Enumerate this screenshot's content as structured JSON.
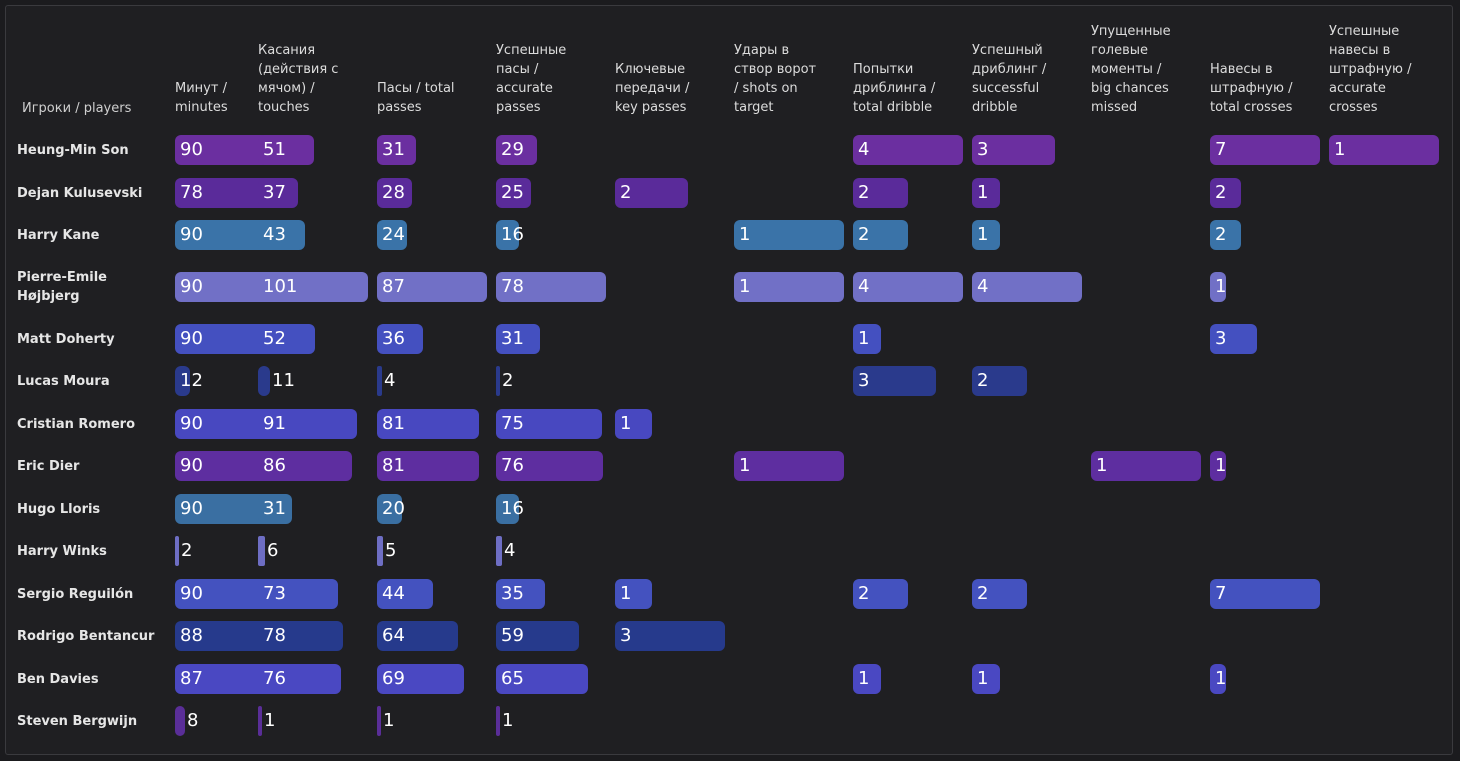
{
  "chart_data": {
    "type": "table",
    "title": "",
    "row_header": "Игроки / players",
    "columns": [
      "Минут /\nminutes",
      "Касания\n(действия с\nмячом) /\ntouches",
      "Пасы / total\npasses",
      "Успешные\nпасы /\naccurate\npasses",
      "Ключевые\nпередачи /\nkey passes",
      "Удары в\nствор ворот\n/ shots on\ntarget",
      "Попытки\nдриблинга /\ntotal dribble",
      "Успешный\nдриблинг /\nsuccessful\ndribble",
      "Упущенные\nголевые\nмоменты /\nbig chances\nmissed",
      "Навесы в\nштрафную /\ntotal crosses",
      "Успешные\nнавесы в\nштрафную /\naccurate\ncrosses"
    ],
    "column_max": [
      90,
      101,
      87,
      78,
      3,
      1,
      4,
      4,
      1,
      7,
      1
    ],
    "rows": [
      {
        "player": "Heung-Min Son",
        "color": "#6b2fa0",
        "values": [
          90,
          51,
          31,
          29,
          null,
          null,
          4,
          3,
          null,
          7,
          1
        ]
      },
      {
        "player": "Dejan Kulusevski",
        "color": "#5a2b9a",
        "values": [
          78,
          37,
          28,
          25,
          2,
          null,
          2,
          1,
          null,
          2,
          null
        ]
      },
      {
        "player": "Harry Kane",
        "color": "#3a73a8",
        "values": [
          90,
          43,
          24,
          16,
          null,
          1,
          2,
          1,
          null,
          2,
          null
        ]
      },
      {
        "player": "Pierre-Emile\nHøjbjerg",
        "color": "#7170c6",
        "values": [
          90,
          101,
          87,
          78,
          null,
          1,
          4,
          4,
          null,
          1,
          null
        ]
      },
      {
        "player": "Matt Doherty",
        "color": "#4450c0",
        "values": [
          90,
          52,
          36,
          31,
          null,
          null,
          1,
          null,
          null,
          3,
          null
        ]
      },
      {
        "player": "Lucas Moura",
        "color": "#2a3a8c",
        "values": [
          12,
          11,
          4,
          2,
          null,
          null,
          3,
          2,
          null,
          null,
          null
        ]
      },
      {
        "player": "Cristian Romero",
        "color": "#4848c0",
        "values": [
          90,
          91,
          81,
          75,
          1,
          null,
          null,
          null,
          null,
          null,
          null
        ]
      },
      {
        "player": "Eric Dier",
        "color": "#5e2ea0",
        "values": [
          90,
          86,
          81,
          76,
          null,
          1,
          null,
          null,
          1,
          1,
          null
        ]
      },
      {
        "player": "Hugo Lloris",
        "color": "#3a6fa2",
        "values": [
          90,
          31,
          20,
          16,
          null,
          null,
          null,
          null,
          null,
          null,
          null
        ]
      },
      {
        "player": "Harry Winks",
        "color": "#6e6ec4",
        "values": [
          2,
          6,
          5,
          4,
          null,
          null,
          null,
          null,
          null,
          null,
          null
        ]
      },
      {
        "player": "Sergio Reguilón",
        "color": "#4452bf",
        "values": [
          90,
          73,
          44,
          35,
          1,
          null,
          2,
          2,
          null,
          7,
          null
        ]
      },
      {
        "player": "Rodrigo Bentancur",
        "color": "#263a8c",
        "values": [
          88,
          78,
          64,
          59,
          3,
          null,
          null,
          null,
          null,
          null,
          null
        ]
      },
      {
        "player": "Ben Davies",
        "color": "#4a48c2",
        "values": [
          87,
          76,
          69,
          65,
          null,
          null,
          1,
          1,
          null,
          1,
          null
        ]
      },
      {
        "player": "Steven Bergwijn",
        "color": "#5a2e98",
        "values": [
          8,
          1,
          1,
          1,
          null,
          null,
          null,
          null,
          null,
          null,
          null
        ]
      }
    ]
  }
}
